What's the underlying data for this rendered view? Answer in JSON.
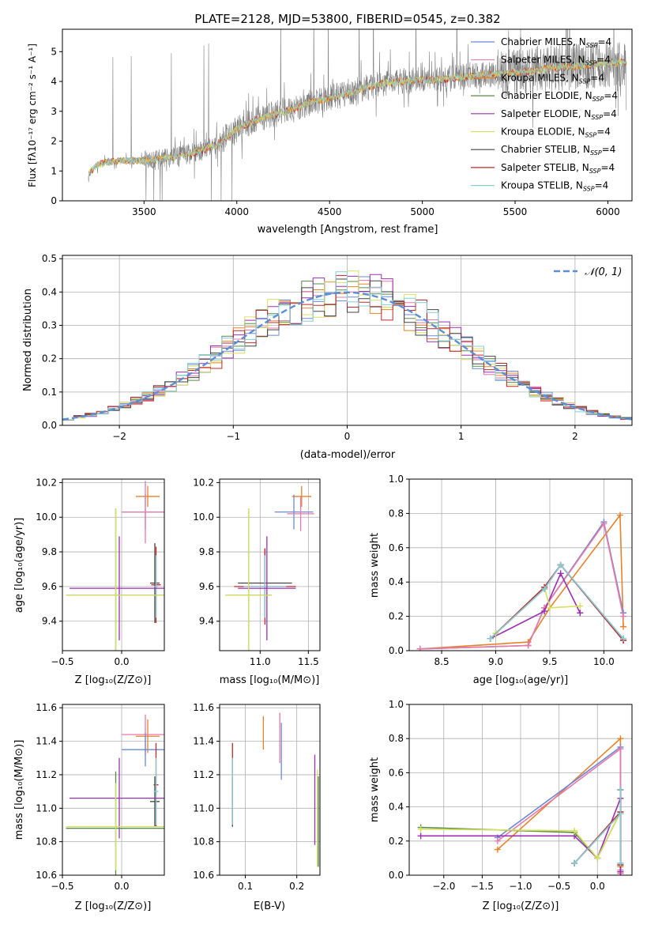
{
  "figure_title": "PLATE=2128, MJD=53800, FIBERID=0545, z=0.382",
  "colors": {
    "chabrier_miles": "#6a8ad8",
    "salpeter_miles": "#e879a8",
    "kroupa_miles": "#e8822a",
    "chabrier_elodie": "#5a8a4a",
    "salpeter_elodie": "#9a30b0",
    "kroupa_elodie": "#d6e060",
    "chabrier_stelib": "#444444",
    "salpeter_stelib": "#c0282a",
    "kroupa_stelib": "#88ccd8",
    "gaussian": "#5a8fd8",
    "grid": "#b0b0b0",
    "gray_data": "#808080"
  },
  "legend_spectrum": [
    {
      "text": "Chabrier MILES, N",
      "sub": "SSP",
      "tail": "=4",
      "color": "#6a8ad8"
    },
    {
      "text": "Salpeter MILES, N",
      "sub": "SSP",
      "tail": "=4",
      "color": "#e879a8"
    },
    {
      "text": "Kroupa MILES, N",
      "sub": "SSP",
      "tail": "=4",
      "color": "#e8822a"
    },
    {
      "text": "Chabrier ELODIE, N",
      "sub": "SSP",
      "tail": "=4",
      "color": "#5a8a4a"
    },
    {
      "text": "Salpeter ELODIE, N",
      "sub": "SSP",
      "tail": "=4",
      "color": "#9a30b0"
    },
    {
      "text": "Kroupa ELODIE, N",
      "sub": "SSP",
      "tail": "=4",
      "color": "#d6e060"
    },
    {
      "text": "Chabrier STELIB, N",
      "sub": "SSP",
      "tail": "=4",
      "color": "#444444"
    },
    {
      "text": "Salpeter STELIB, N",
      "sub": "SSP",
      "tail": "=4",
      "color": "#c0282a"
    },
    {
      "text": "Kroupa STELIB, N",
      "sub": "SSP",
      "tail": "=4",
      "color": "#88ccd8"
    }
  ],
  "legend_hist": {
    "text": "𝒩(0, 1)"
  },
  "chart_data": [
    {
      "id": "spectrum",
      "type": "line",
      "ylabel": "Flux [fλ10⁻¹⁷ erg cm⁻² s⁻¹ A⁻¹]",
      "xlabel": "wavelength [Angstrom, rest frame]",
      "xlim": [
        3060,
        6130
      ],
      "ylim": [
        0,
        5.75
      ],
      "xticks": [
        3500,
        4000,
        4500,
        5000,
        5500,
        6000
      ],
      "yticks": [
        0,
        1,
        2,
        3,
        4,
        5
      ],
      "grid": false,
      "legend": "upper-right",
      "model_trend": {
        "x": [
          3200,
          3250,
          3300,
          3400,
          3500,
          3600,
          3700,
          3800,
          3900,
          4000,
          4100,
          4200,
          4300,
          4400,
          4500,
          4600,
          4700,
          4800,
          4900,
          5000,
          5100,
          5200,
          5300,
          5400,
          5500,
          5600,
          5700,
          5800,
          5900,
          6000,
          6100
        ],
        "y": [
          0.9,
          1.2,
          1.3,
          1.35,
          1.35,
          1.4,
          1.5,
          1.65,
          1.9,
          2.4,
          2.7,
          2.9,
          3.05,
          3.3,
          3.45,
          3.6,
          3.8,
          3.95,
          4.0,
          4.05,
          4.05,
          4.15,
          4.2,
          4.25,
          4.3,
          4.35,
          4.45,
          4.5,
          4.55,
          4.6,
          4.65
        ]
      }
    },
    {
      "id": "residuals",
      "type": "bar",
      "ylabel": "Normed distribution",
      "xlabel": "(data-model)/error",
      "xlim": [
        -2.5,
        2.5
      ],
      "ylim": [
        0,
        0.51
      ],
      "xticks": [
        -2,
        -1,
        0,
        1,
        2
      ],
      "xticklabels": [
        "−2",
        "−1",
        "0",
        "1",
        "2"
      ],
      "yticks": [
        0.0,
        0.1,
        0.2,
        0.3,
        0.4,
        0.5
      ],
      "yticklabels": [
        "0.0",
        "0.1",
        "0.2",
        "0.3",
        "0.4",
        "0.5"
      ],
      "grid": true,
      "legend": "upper-right",
      "bin_width": 0.1,
      "gaussian": {
        "mean": 0,
        "sigma": 1
      }
    },
    {
      "id": "age_vs_Z",
      "type": "scatter",
      "ylabel": "age  [log₁₀(age/yr)]",
      "xlabel": "Z [log₁₀(Z/Z⊙)]",
      "xlim": [
        -0.5,
        0.36
      ],
      "ylim": [
        9.23,
        10.22
      ],
      "xticks": [
        -0.5,
        0.0
      ],
      "xticklabels": [
        "−0.5",
        "0.0"
      ],
      "yticks": [
        9.4,
        9.6,
        9.8,
        10.0,
        10.2
      ],
      "yticklabels": [
        "9.4",
        "9.6",
        "9.8",
        "10.0",
        "10.2"
      ],
      "grid": true,
      "points": [
        {
          "x": 0.22,
          "y": 10.12,
          "xerr": 0.1,
          "yerr": 0.06,
          "color": "#e8822a"
        },
        {
          "x": 0.2,
          "y": 10.03,
          "xerr": 0.2,
          "yerr": 0.1,
          "color": "#6a8ad8"
        },
        {
          "x": 0.2,
          "y": 10.03,
          "xerr": 0.2,
          "yerr": 0.18,
          "color": "#e879a8"
        },
        {
          "x": 0.28,
          "y": 9.62,
          "xerr": 0.04,
          "yerr": 0.23,
          "color": "#444444"
        },
        {
          "x": 0.29,
          "y": 9.61,
          "xerr": 0.04,
          "yerr": 0.22,
          "color": "#c0282a"
        },
        {
          "x": 0.29,
          "y": 9.6,
          "xerr": 0.02,
          "yerr": 0.18,
          "color": "#88ccd8"
        },
        {
          "x": -0.02,
          "y": 9.59,
          "xerr": 0.42,
          "yerr": 0.3,
          "color": "#9a30b0"
        },
        {
          "x": -0.05,
          "y": 9.55,
          "xerr": 0.42,
          "yerr": 0.5,
          "color": "#5a8a4a"
        },
        {
          "x": -0.05,
          "y": 9.55,
          "xerr": 0.42,
          "yerr": 0.5,
          "color": "#d6e060"
        }
      ]
    },
    {
      "id": "age_vs_mass",
      "type": "scatter",
      "xlabel": "mass [log₁₀(M/M⊙)]",
      "xlim": [
        10.58,
        11.62
      ],
      "ylim": [
        9.23,
        10.22
      ],
      "xticks": [
        11.0,
        11.5
      ],
      "xticklabels": [
        "11.0",
        "11.5"
      ],
      "yticks": [
        9.4,
        9.6,
        9.8,
        10.0,
        10.2
      ],
      "yticklabels": [
        "9.4",
        "9.6",
        "9.8",
        "10.0",
        "10.2"
      ],
      "grid": true,
      "points": [
        {
          "x": 11.43,
          "y": 10.12,
          "xerr": 0.1,
          "yerr": 0.06,
          "color": "#e8822a"
        },
        {
          "x": 11.35,
          "y": 10.03,
          "xerr": 0.2,
          "yerr": 0.1,
          "color": "#6a8ad8"
        },
        {
          "x": 11.42,
          "y": 10.02,
          "xerr": 0.14,
          "yerr": 0.1,
          "color": "#e879a8"
        },
        {
          "x": 11.05,
          "y": 9.62,
          "xerr": 0.28,
          "yerr": 0.2,
          "color": "#444444"
        },
        {
          "x": 11.05,
          "y": 9.6,
          "xerr": 0.32,
          "yerr": 0.22,
          "color": "#c0282a"
        },
        {
          "x": 11.05,
          "y": 9.6,
          "xerr": 0.22,
          "yerr": 0.18,
          "color": "#88ccd8"
        },
        {
          "x": 11.07,
          "y": 9.59,
          "xerr": 0.3,
          "yerr": 0.3,
          "color": "#9a30b0"
        },
        {
          "x": 10.88,
          "y": 9.55,
          "xerr": 0.24,
          "yerr": 0.5,
          "color": "#5a8a4a"
        },
        {
          "x": 10.88,
          "y": 9.55,
          "xerr": 0.24,
          "yerr": 0.5,
          "color": "#d6e060"
        }
      ]
    },
    {
      "id": "weight_vs_age",
      "type": "line",
      "ylabel": "mass weight",
      "xlabel": "age  [log₁₀(age/yr)]",
      "xlim": [
        8.2,
        10.26
      ],
      "ylim": [
        0,
        1.0
      ],
      "xticks": [
        8.5,
        9.0,
        9.5,
        10.0
      ],
      "xticklabels": [
        "8.5",
        "9.0",
        "9.5",
        "10.0"
      ],
      "yticks": [
        0.0,
        0.2,
        0.4,
        0.6,
        0.8,
        1.0
      ],
      "yticklabels": [
        "0.0",
        "0.2",
        "0.4",
        "0.6",
        "0.8",
        "1.0"
      ],
      "grid": true,
      "series": [
        {
          "x": [
            8.3,
            9.3,
            9.5,
            10.15,
            10.18
          ],
          "y": [
            0.01,
            0.05,
            0.25,
            0.79,
            0.14
          ],
          "color": "#e8822a"
        },
        {
          "x": [
            8.3,
            9.3,
            9.45,
            10.0,
            10.18
          ],
          "y": [
            0.01,
            0.03,
            0.25,
            0.75,
            0.22
          ],
          "color": "#6a8ad8"
        },
        {
          "x": [
            8.3,
            9.3,
            9.45,
            10.0,
            10.18
          ],
          "y": [
            0.01,
            0.03,
            0.25,
            0.74,
            0.2
          ],
          "color": "#e879a8"
        },
        {
          "x": [
            8.95,
            9.45,
            9.6,
            9.78
          ],
          "y": [
            0.07,
            0.23,
            0.45,
            0.22
          ],
          "color": "#9a30b0"
        },
        {
          "x": [
            9.0,
            9.45,
            9.6,
            10.18
          ],
          "y": [
            0.1,
            0.37,
            0.5,
            0.07
          ],
          "color": "#5a8a4a"
        },
        {
          "x": [
            9.0,
            9.45,
            9.5,
            9.78
          ],
          "y": [
            0.1,
            0.37,
            0.25,
            0.26
          ],
          "color": "#d6e060"
        },
        {
          "x": [
            8.95,
            9.45,
            9.6,
            10.18
          ],
          "y": [
            0.07,
            0.36,
            0.5,
            0.06
          ],
          "color": "#444444"
        },
        {
          "x": [
            8.95,
            9.45,
            9.6,
            10.18
          ],
          "y": [
            0.07,
            0.37,
            0.5,
            0.06
          ],
          "color": "#c0282a"
        },
        {
          "x": [
            8.95,
            9.45,
            9.6,
            10.18
          ],
          "y": [
            0.07,
            0.36,
            0.5,
            0.07
          ],
          "color": "#88ccd8"
        }
      ]
    },
    {
      "id": "mass_vs_Z",
      "type": "scatter",
      "ylabel": "mass [log₁₀(M/M⊙)]",
      "xlabel": "Z [log₁₀(Z/Z⊙)]",
      "xlim": [
        -0.5,
        0.36
      ],
      "ylim": [
        10.6,
        11.62
      ],
      "xticks": [
        -0.5,
        0.0
      ],
      "xticklabels": [
        "−0.5",
        "0.0"
      ],
      "yticks": [
        10.6,
        10.8,
        11.0,
        11.2,
        11.4,
        11.6
      ],
      "yticklabels": [
        "10.6",
        "10.8",
        "11.0",
        "11.2",
        "11.4",
        "11.6"
      ],
      "grid": true,
      "points": [
        {
          "x": 0.22,
          "y": 11.43,
          "xerr": 0.1,
          "yerr": 0.1,
          "color": "#e8822a"
        },
        {
          "x": 0.2,
          "y": 11.44,
          "xerr": 0.2,
          "yerr": 0.12,
          "color": "#e879a8"
        },
        {
          "x": 0.2,
          "y": 11.35,
          "xerr": 0.2,
          "yerr": 0.1,
          "color": "#6a8ad8"
        },
        {
          "x": 0.29,
          "y": 11.14,
          "xerr": 0.02,
          "yerr": 0.25,
          "color": "#c0282a"
        },
        {
          "x": 0.28,
          "y": 11.04,
          "xerr": 0.04,
          "yerr": 0.15,
          "color": "#444444"
        },
        {
          "x": 0.29,
          "y": 11.1,
          "xerr": 0.02,
          "yerr": 0.2,
          "color": "#88ccd8"
        },
        {
          "x": -0.02,
          "y": 11.06,
          "xerr": 0.42,
          "yerr": 0.24,
          "color": "#9a30b0"
        },
        {
          "x": -0.05,
          "y": 10.88,
          "xerr": 0.42,
          "yerr": 0.34,
          "color": "#5a8a4a"
        },
        {
          "x": -0.05,
          "y": 10.89,
          "xerr": 0.42,
          "yerr": 0.26,
          "color": "#d6e060"
        }
      ]
    },
    {
      "id": "mass_vs_ebv",
      "type": "scatter",
      "xlabel": "E(B-V)",
      "xlim": [
        0.05,
        0.245
      ],
      "ylim": [
        10.6,
        11.62
      ],
      "xticks": [
        0.1,
        0.2
      ],
      "xticklabels": [
        "0.1",
        "0.2"
      ],
      "yticks": [
        10.6,
        10.8,
        11.0,
        11.2,
        11.4,
        11.6
      ],
      "yticklabels": [
        "10.6",
        "10.8",
        "11.0",
        "11.2",
        "11.4",
        "11.6"
      ],
      "grid": true,
      "points": [
        {
          "x": 0.075,
          "y": 11.14,
          "xerr": 0,
          "yerr": 0.25,
          "color": "#c0282a"
        },
        {
          "x": 0.075,
          "y": 11.04,
          "xerr": 0,
          "yerr": 0.15,
          "color": "#444444"
        },
        {
          "x": 0.075,
          "y": 11.1,
          "xerr": 0,
          "yerr": 0.2,
          "color": "#88ccd8"
        },
        {
          "x": 0.135,
          "y": 11.45,
          "xerr": 0,
          "yerr": 0.1,
          "color": "#e8822a"
        },
        {
          "x": 0.167,
          "y": 11.42,
          "xerr": 0,
          "yerr": 0.15,
          "color": "#e879a8"
        },
        {
          "x": 0.17,
          "y": 11.34,
          "xerr": 0,
          "yerr": 0.17,
          "color": "#6a8ad8"
        },
        {
          "x": 0.235,
          "y": 11.05,
          "xerr": 0,
          "yerr": 0.27,
          "color": "#9a30b0"
        },
        {
          "x": 0.24,
          "y": 10.94,
          "xerr": 0,
          "yerr": 0.29,
          "color": "#d6e060"
        },
        {
          "x": 0.242,
          "y": 10.92,
          "xerr": 0,
          "yerr": 0.27,
          "color": "#5a8a4a"
        }
      ]
    },
    {
      "id": "weight_vs_Z",
      "type": "line",
      "ylabel": "mass weight",
      "xlabel": "Z [log₁₀(Z/Z⊙)]",
      "xlim": [
        -2.45,
        0.45
      ],
      "ylim": [
        0,
        1.0
      ],
      "xticks": [
        -2.0,
        -1.5,
        -1.0,
        -0.5,
        0.0
      ],
      "xticklabels": [
        "−2.0",
        "−1.5",
        "−1.0",
        "−0.5",
        "0.0"
      ],
      "yticks": [
        0.0,
        0.2,
        0.4,
        0.6,
        0.8,
        1.0
      ],
      "yticklabels": [
        "0.0",
        "0.2",
        "0.4",
        "0.6",
        "0.8",
        "1.0"
      ],
      "grid": true,
      "series": [
        {
          "x": [
            -1.3,
            0.3,
            0.3,
            0.3,
            0.3
          ],
          "y": [
            0.15,
            0.8,
            0.05,
            0.02,
            0.01
          ],
          "color": "#e8822a"
        },
        {
          "x": [
            -1.3,
            0.3,
            0.3,
            0.3
          ],
          "y": [
            0.22,
            0.75,
            0.03,
            0.01
          ],
          "color": "#6a8ad8"
        },
        {
          "x": [
            -1.3,
            0.3,
            0.3,
            0.3
          ],
          "y": [
            0.2,
            0.74,
            0.03,
            0.01
          ],
          "color": "#e879a8"
        },
        {
          "x": [
            -2.3,
            -0.3,
            0.0,
            0.3,
            0.3
          ],
          "y": [
            0.23,
            0.23,
            0.1,
            0.45,
            0.02
          ],
          "color": "#9a30b0"
        },
        {
          "x": [
            -2.3,
            -0.3,
            0.0,
            0.3,
            0.3
          ],
          "y": [
            0.28,
            0.25,
            0.1,
            0.37,
            0.07
          ],
          "color": "#5a8a4a"
        },
        {
          "x": [
            -2.3,
            -0.3,
            0.0,
            0.3
          ],
          "y": [
            0.27,
            0.26,
            0.1,
            0.37
          ],
          "color": "#d6e060"
        },
        {
          "x": [
            -0.3,
            0.3,
            0.3,
            0.3
          ],
          "y": [
            0.07,
            0.36,
            0.5,
            0.06
          ],
          "color": "#444444"
        },
        {
          "x": [
            -0.3,
            0.3,
            0.3,
            0.3
          ],
          "y": [
            0.07,
            0.37,
            0.5,
            0.06
          ],
          "color": "#c0282a"
        },
        {
          "x": [
            -0.3,
            0.3,
            0.3,
            0.3
          ],
          "y": [
            0.07,
            0.36,
            0.5,
            0.07
          ],
          "color": "#88ccd8"
        }
      ]
    }
  ]
}
